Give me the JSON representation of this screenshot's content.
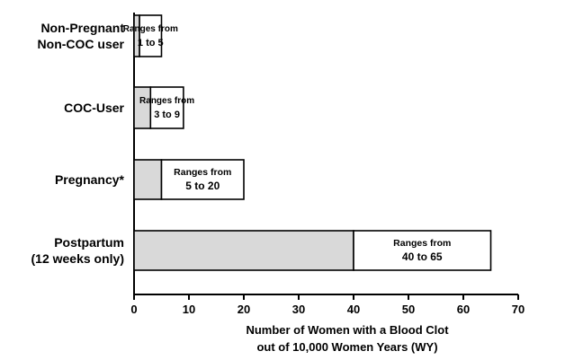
{
  "chart_data": {
    "type": "bar",
    "orientation": "horizontal",
    "stacked": true,
    "categories": [
      [
        "Non-Pregnant",
        "Non-COC user"
      ],
      [
        "COC-User"
      ],
      [
        "Pregnancy*"
      ],
      [
        "Postpartum",
        "(12 weeks only)"
      ]
    ],
    "series": [
      {
        "values": [
          1,
          3,
          5,
          40
        ],
        "color": "#d9d9d9"
      },
      {
        "values": [
          4,
          6,
          15,
          25
        ],
        "color": "#ffffff"
      }
    ],
    "range_labels": [
      [
        "Ranges from",
        "1 to 5"
      ],
      [
        "Ranges from",
        "3 to 9"
      ],
      [
        "Ranges from",
        "5 to 20"
      ],
      [
        "Ranges from",
        "40 to 65"
      ]
    ],
    "x_ticks": [
      "0",
      "10",
      "20",
      "30",
      "40",
      "50",
      "60",
      "70"
    ],
    "xlim": [
      0,
      70
    ],
    "xlabel": [
      "Number of Women with a Blood Clot",
      "out of 10,000 Women Years (WY)"
    ],
    "grid": false
  }
}
